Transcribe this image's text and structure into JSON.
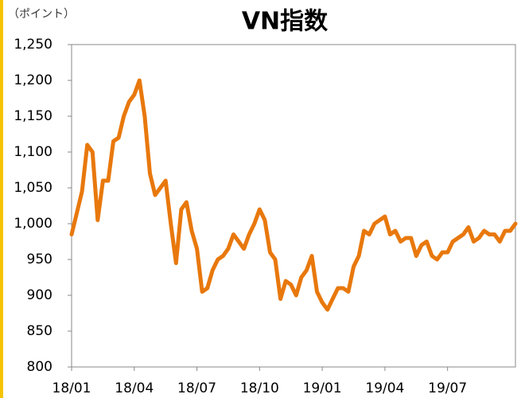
{
  "chart_data": {
    "type": "line",
    "title": "VN指数",
    "y_label": "（ポイント）",
    "categories": [
      "18/01",
      null,
      null,
      null,
      null,
      null,
      null,
      null,
      null,
      null,
      null,
      null,
      "18/04",
      null,
      null,
      null,
      null,
      null,
      null,
      null,
      null,
      null,
      null,
      null,
      "18/07",
      null,
      null,
      null,
      null,
      null,
      null,
      null,
      null,
      null,
      null,
      null,
      "18/10",
      null,
      null,
      null,
      null,
      null,
      null,
      null,
      null,
      null,
      null,
      null,
      "19/01",
      null,
      null,
      null,
      null,
      null,
      null,
      null,
      null,
      null,
      null,
      null,
      "19/04",
      null,
      null,
      null,
      null,
      null,
      null,
      null,
      null,
      null,
      null,
      null,
      "19/07",
      null,
      null,
      null,
      null,
      null,
      null,
      null,
      null,
      null,
      null,
      null,
      null,
      null
    ],
    "values": [
      985,
      1015,
      1045,
      1110,
      1100,
      1005,
      1060,
      1060,
      1115,
      1120,
      1150,
      1170,
      1180,
      1200,
      1150,
      1070,
      1040,
      1050,
      1060,
      1000,
      945,
      1020,
      1030,
      990,
      965,
      905,
      910,
      935,
      950,
      955,
      965,
      985,
      975,
      965,
      985,
      1000,
      1020,
      1005,
      960,
      950,
      895,
      920,
      915,
      900,
      925,
      935,
      955,
      905,
      890,
      880,
      895,
      910,
      910,
      905,
      940,
      955,
      990,
      985,
      1000,
      1005,
      1010,
      985,
      990,
      975,
      980,
      980,
      955,
      970,
      975,
      955,
      950,
      960,
      960,
      975,
      980,
      985,
      995,
      975,
      980,
      990,
      985,
      985,
      975,
      990,
      990,
      1000
    ],
    "color": "#e8780c",
    "ylim": [
      800,
      1250
    ],
    "yticks": [
      800,
      850,
      900,
      950,
      {
        "value": 1000,
        "label": "1,000"
      },
      {
        "value": 1050,
        "label": "1,050"
      },
      {
        "value": 1100,
        "label": "1,100"
      },
      {
        "value": 1150,
        "label": "1,150"
      },
      {
        "value": 1200,
        "label": "1,200"
      },
      {
        "value": 1250,
        "label": "1,250"
      }
    ],
    "grid": false
  }
}
